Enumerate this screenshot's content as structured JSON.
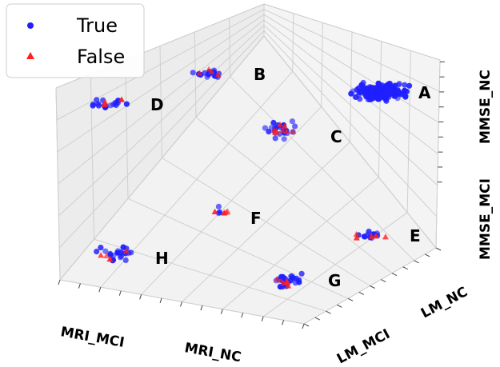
{
  "chart_data": {
    "type": "scatter",
    "projection": "3d",
    "grid": true,
    "legend_position": "top-left",
    "axes": {
      "x_tick_labels": [
        "MRI_MCI",
        "MRI_NC"
      ],
      "y_tick_labels": [
        "LM_MCI",
        "LM_NC"
      ],
      "z_tick_labels": [
        "MMSE_MCI",
        "MMSE_NC"
      ]
    },
    "series": [
      {
        "name": "True",
        "marker": "circle",
        "color": "#1f1fff"
      },
      {
        "name": "False",
        "marker": "triangle",
        "color": "#ff2020"
      }
    ],
    "clusters": [
      {
        "label": "A",
        "x": "MRI_NC",
        "y": "LM_NC",
        "z": "MMSE_NC",
        "true_count": 200,
        "false_count": 0
      },
      {
        "label": "B",
        "x": "MRI_MCI",
        "y": "LM_NC",
        "z": "MMSE_NC",
        "true_count": 16,
        "false_count": 4
      },
      {
        "label": "C",
        "x": "MRI_NC",
        "y": "LM_MCI",
        "z": "MMSE_NC",
        "true_count": 22,
        "false_count": 8
      },
      {
        "label": "D",
        "x": "MRI_MCI",
        "y": "LM_MCI",
        "z": "MMSE_NC",
        "true_count": 16,
        "false_count": 3
      },
      {
        "label": "E",
        "x": "MRI_NC",
        "y": "LM_NC",
        "z": "MMSE_MCI",
        "true_count": 12,
        "false_count": 5
      },
      {
        "label": "F",
        "x": "MRI_MCI",
        "y": "LM_NC",
        "z": "MMSE_MCI",
        "true_count": 3,
        "false_count": 4
      },
      {
        "label": "G",
        "x": "MRI_NC",
        "y": "LM_MCI",
        "z": "MMSE_MCI",
        "true_count": 22,
        "false_count": 6
      },
      {
        "label": "H",
        "x": "MRI_MCI",
        "y": "LM_MCI",
        "z": "MMSE_MCI",
        "true_count": 20,
        "false_count": 4
      }
    ]
  }
}
